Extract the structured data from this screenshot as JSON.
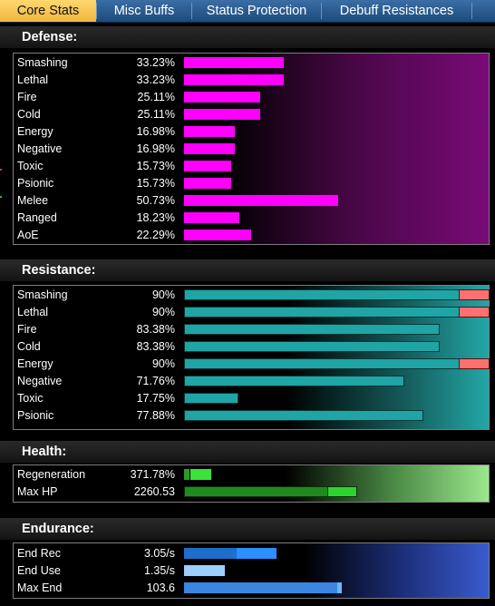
{
  "tabs": [
    {
      "label": "Core Stats",
      "active": true
    },
    {
      "label": "Misc Buffs",
      "active": false
    },
    {
      "label": "Status Protection",
      "active": false
    },
    {
      "label": "Debuff Resistances",
      "active": false
    }
  ],
  "defense": {
    "title": "Defense:",
    "rows": [
      {
        "label": "Smashing",
        "value": "33.23%",
        "level": 33.23
      },
      {
        "label": "Lethal",
        "value": "33.23%",
        "level": 33.23
      },
      {
        "label": "Fire",
        "value": "25.11%",
        "level": 25.11
      },
      {
        "label": "Cold",
        "value": "25.11%",
        "level": 25.11
      },
      {
        "label": "Energy",
        "value": "16.98%",
        "level": 16.98
      },
      {
        "label": "Negative",
        "value": "16.98%",
        "level": 16.98
      },
      {
        "label": "Toxic",
        "value": "15.73%",
        "level": 15.73
      },
      {
        "label": "Psionic",
        "value": "15.73%",
        "level": 15.73
      },
      {
        "label": "Melee",
        "value": "50.73%",
        "level": 50.73
      },
      {
        "label": "Ranged",
        "value": "18.23%",
        "level": 18.23
      },
      {
        "label": "AoE",
        "value": "22.29%",
        "level": 22.29
      }
    ]
  },
  "resistance": {
    "title": "Resistance:",
    "rows": [
      {
        "label": "Smashing",
        "value": "90%",
        "level": 90,
        "capped": true
      },
      {
        "label": "Lethal",
        "value": "90%",
        "level": 90,
        "capped": true
      },
      {
        "label": "Fire",
        "value": "83.38%",
        "level": 83.38,
        "capped": false
      },
      {
        "label": "Cold",
        "value": "83.38%",
        "level": 83.38,
        "capped": false
      },
      {
        "label": "Energy",
        "value": "90%",
        "level": 90,
        "capped": true
      },
      {
        "label": "Negative",
        "value": "71.76%",
        "level": 71.76,
        "capped": false
      },
      {
        "label": "Toxic",
        "value": "17.75%",
        "level": 17.75,
        "capped": false
      },
      {
        "label": "Psionic",
        "value": "77.88%",
        "level": 77.88,
        "capped": false
      }
    ]
  },
  "health": {
    "title": "Health:",
    "rows": [
      {
        "label": "Regeneration",
        "value": "371.78%"
      },
      {
        "label": "Max HP",
        "value": "2260.53"
      }
    ]
  },
  "endurance": {
    "title": "Endurance:",
    "rows": [
      {
        "label": "End Rec",
        "value": "3.05/s"
      },
      {
        "label": "End Use",
        "value": "1.35/s"
      },
      {
        "label": "Max End",
        "value": "103.6"
      }
    ]
  },
  "colors": {
    "defense_bar": "#ff00ff",
    "resistance_bar": "#1fa5a5",
    "resistance_cap": "#ff7070",
    "health_bar": "#2ed42e",
    "endurance_bar": "#2b8fff",
    "tab_active": "#f0b63c",
    "tab_bar": "#2a5d94"
  }
}
